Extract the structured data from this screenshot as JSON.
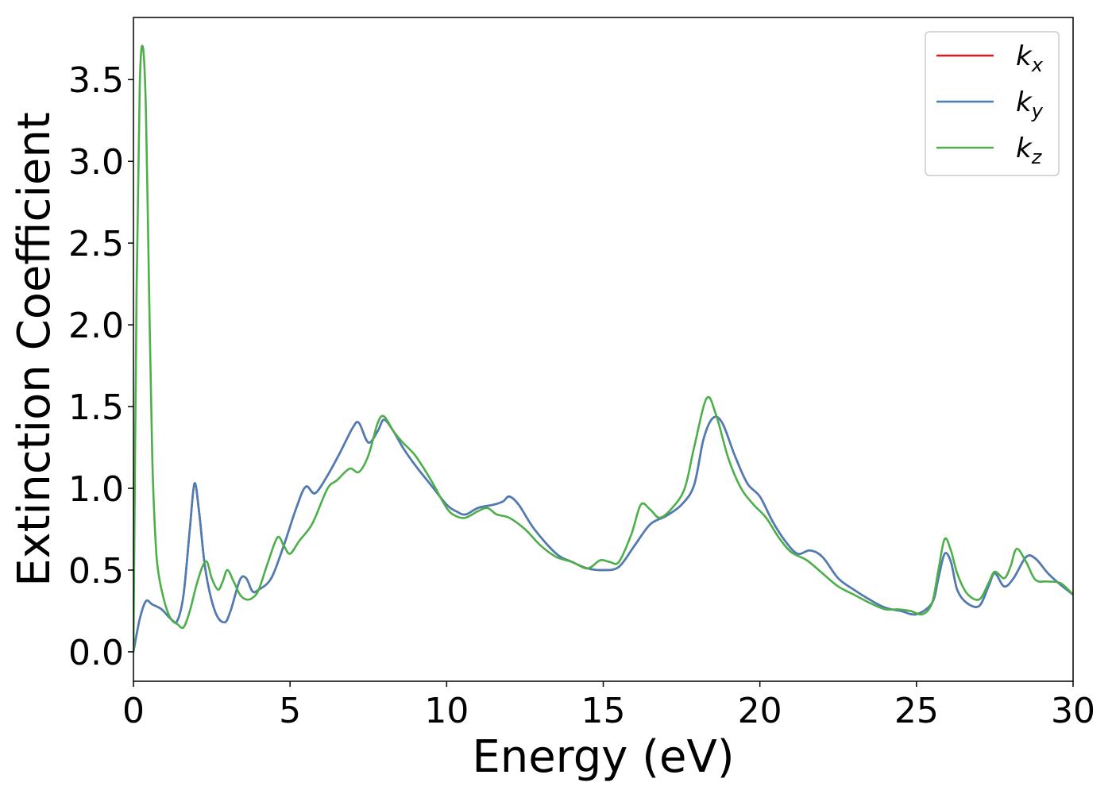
{
  "chart_data": {
    "type": "line",
    "title": "",
    "xlabel": "Energy (eV)",
    "ylabel": "Extinction Coefficient",
    "xlim": [
      0,
      30
    ],
    "ylim": [
      -0.18,
      3.88
    ],
    "xticks": [
      0,
      5,
      10,
      15,
      20,
      25,
      30
    ],
    "xtick_labels": [
      "0",
      "5",
      "10",
      "15",
      "20",
      "25",
      "30"
    ],
    "yticks": [
      0.0,
      0.5,
      1.0,
      1.5,
      2.0,
      2.5,
      3.0,
      3.5
    ],
    "ytick_labels": [
      "0.0",
      "0.5",
      "1.0",
      "1.5",
      "2.0",
      "2.5",
      "3.0",
      "3.5"
    ],
    "grid": false,
    "legend_position": "top-right",
    "series": [
      {
        "name": "k_x",
        "label_main": "k",
        "label_sub": "x",
        "color": "#e41a1c",
        "x": [
          0,
          0.2,
          0.4,
          0.6,
          0.9,
          1.2,
          1.4,
          1.6,
          1.8,
          1.95,
          2.1,
          2.3,
          2.6,
          2.9,
          3.1,
          3.4,
          3.6,
          3.8,
          4.0,
          4.4,
          4.8,
          5.2,
          5.5,
          5.8,
          6.2,
          6.6,
          7.0,
          7.2,
          7.5,
          7.8,
          8.0,
          8.3,
          8.6,
          9.0,
          9.5,
          10.0,
          10.3,
          10.6,
          11.0,
          11.5,
          11.8,
          12.0,
          12.3,
          12.8,
          13.5,
          14.0,
          14.5,
          15.0,
          15.5,
          16.0,
          16.5,
          17.0,
          17.5,
          17.9,
          18.2,
          18.5,
          18.8,
          19.2,
          19.6,
          20.0,
          20.4,
          20.8,
          21.2,
          21.6,
          22.0,
          22.5,
          23.0,
          23.5,
          24.0,
          24.5,
          25.0,
          25.5,
          25.7,
          25.9,
          26.1,
          26.3,
          26.6,
          27.0,
          27.3,
          27.5,
          27.8,
          28.1,
          28.5,
          28.8,
          29.2,
          29.6,
          30.0
        ],
        "y": [
          0.0,
          0.2,
          0.31,
          0.29,
          0.26,
          0.2,
          0.19,
          0.35,
          0.75,
          1.03,
          0.85,
          0.5,
          0.25,
          0.18,
          0.25,
          0.44,
          0.45,
          0.37,
          0.38,
          0.45,
          0.65,
          0.88,
          1.01,
          0.97,
          1.08,
          1.22,
          1.37,
          1.4,
          1.28,
          1.35,
          1.42,
          1.35,
          1.25,
          1.14,
          1.02,
          0.9,
          0.86,
          0.84,
          0.88,
          0.9,
          0.92,
          0.95,
          0.9,
          0.75,
          0.6,
          0.55,
          0.51,
          0.5,
          0.52,
          0.65,
          0.78,
          0.83,
          0.9,
          1.02,
          1.3,
          1.43,
          1.4,
          1.2,
          1.03,
          0.95,
          0.8,
          0.68,
          0.6,
          0.62,
          0.58,
          0.45,
          0.38,
          0.32,
          0.27,
          0.25,
          0.23,
          0.3,
          0.45,
          0.6,
          0.55,
          0.38,
          0.3,
          0.28,
          0.4,
          0.48,
          0.4,
          0.45,
          0.58,
          0.57,
          0.48,
          0.41,
          0.35
        ]
      },
      {
        "name": "k_y",
        "label_main": "k",
        "label_sub": "y",
        "color": "#4a7eb7",
        "x": [
          0,
          0.2,
          0.4,
          0.6,
          0.9,
          1.2,
          1.4,
          1.6,
          1.8,
          1.95,
          2.1,
          2.3,
          2.6,
          2.9,
          3.1,
          3.4,
          3.6,
          3.8,
          4.0,
          4.4,
          4.8,
          5.2,
          5.5,
          5.8,
          6.2,
          6.6,
          7.0,
          7.2,
          7.5,
          7.8,
          8.0,
          8.3,
          8.6,
          9.0,
          9.5,
          10.0,
          10.3,
          10.6,
          11.0,
          11.5,
          11.8,
          12.0,
          12.3,
          12.8,
          13.5,
          14.0,
          14.5,
          15.0,
          15.5,
          16.0,
          16.5,
          17.0,
          17.5,
          17.9,
          18.2,
          18.5,
          18.8,
          19.2,
          19.6,
          20.0,
          20.4,
          20.8,
          21.2,
          21.6,
          22.0,
          22.5,
          23.0,
          23.5,
          24.0,
          24.5,
          25.0,
          25.5,
          25.7,
          25.9,
          26.1,
          26.3,
          26.6,
          27.0,
          27.3,
          27.5,
          27.8,
          28.1,
          28.5,
          28.8,
          29.2,
          29.6,
          30.0
        ],
        "y": [
          0.0,
          0.2,
          0.31,
          0.29,
          0.26,
          0.2,
          0.19,
          0.35,
          0.75,
          1.03,
          0.85,
          0.5,
          0.25,
          0.18,
          0.25,
          0.44,
          0.45,
          0.37,
          0.38,
          0.45,
          0.65,
          0.88,
          1.01,
          0.97,
          1.08,
          1.22,
          1.37,
          1.4,
          1.28,
          1.35,
          1.42,
          1.35,
          1.25,
          1.14,
          1.02,
          0.9,
          0.86,
          0.84,
          0.88,
          0.9,
          0.92,
          0.95,
          0.9,
          0.75,
          0.6,
          0.55,
          0.51,
          0.5,
          0.52,
          0.65,
          0.78,
          0.83,
          0.9,
          1.02,
          1.3,
          1.43,
          1.4,
          1.2,
          1.03,
          0.95,
          0.8,
          0.68,
          0.6,
          0.62,
          0.58,
          0.45,
          0.38,
          0.32,
          0.27,
          0.25,
          0.23,
          0.3,
          0.45,
          0.6,
          0.55,
          0.38,
          0.3,
          0.28,
          0.4,
          0.48,
          0.4,
          0.45,
          0.58,
          0.57,
          0.48,
          0.41,
          0.35
        ]
      },
      {
        "name": "k_z",
        "label_main": "k",
        "label_sub": "z",
        "color": "#4daf4a",
        "x": [
          0,
          0.1,
          0.2,
          0.3,
          0.4,
          0.5,
          0.6,
          0.7,
          0.8,
          1.0,
          1.2,
          1.4,
          1.6,
          1.8,
          2.0,
          2.2,
          2.35,
          2.5,
          2.7,
          2.85,
          3.0,
          3.2,
          3.4,
          3.6,
          3.8,
          4.0,
          4.3,
          4.6,
          4.8,
          5.0,
          5.3,
          5.6,
          5.8,
          6.2,
          6.5,
          6.9,
          7.2,
          7.5,
          7.8,
          8.0,
          8.3,
          8.6,
          9.0,
          9.5,
          10.0,
          10.3,
          10.6,
          11.0,
          11.3,
          11.6,
          12.0,
          12.5,
          13.0,
          13.5,
          14.0,
          14.5,
          14.9,
          15.2,
          15.5,
          15.9,
          16.2,
          16.5,
          16.8,
          17.2,
          17.6,
          17.9,
          18.3,
          18.6,
          19.0,
          19.4,
          19.8,
          20.2,
          20.6,
          21.0,
          21.5,
          22.0,
          22.5,
          23.0,
          23.5,
          24.0,
          24.4,
          24.8,
          25.2,
          25.5,
          25.7,
          25.9,
          26.1,
          26.3,
          26.6,
          27.0,
          27.3,
          27.5,
          27.8,
          28.0,
          28.2,
          28.5,
          28.8,
          29.2,
          29.6,
          30.0
        ],
        "y": [
          0.0,
          2.2,
          3.45,
          3.7,
          3.3,
          2.2,
          1.2,
          0.7,
          0.48,
          0.3,
          0.2,
          0.17,
          0.15,
          0.25,
          0.4,
          0.52,
          0.55,
          0.45,
          0.38,
          0.43,
          0.5,
          0.43,
          0.35,
          0.32,
          0.33,
          0.38,
          0.55,
          0.7,
          0.65,
          0.6,
          0.68,
          0.75,
          0.82,
          1.0,
          1.05,
          1.12,
          1.1,
          1.2,
          1.4,
          1.44,
          1.35,
          1.28,
          1.2,
          1.05,
          0.88,
          0.83,
          0.82,
          0.86,
          0.88,
          0.84,
          0.82,
          0.75,
          0.65,
          0.58,
          0.55,
          0.51,
          0.56,
          0.55,
          0.55,
          0.72,
          0.9,
          0.87,
          0.82,
          0.88,
          1.0,
          1.25,
          1.55,
          1.45,
          1.18,
          1.0,
          0.9,
          0.82,
          0.7,
          0.61,
          0.56,
          0.48,
          0.4,
          0.35,
          0.3,
          0.26,
          0.26,
          0.25,
          0.23,
          0.3,
          0.5,
          0.69,
          0.62,
          0.48,
          0.36,
          0.32,
          0.42,
          0.49,
          0.45,
          0.52,
          0.63,
          0.55,
          0.44,
          0.43,
          0.42,
          0.35
        ]
      }
    ]
  }
}
